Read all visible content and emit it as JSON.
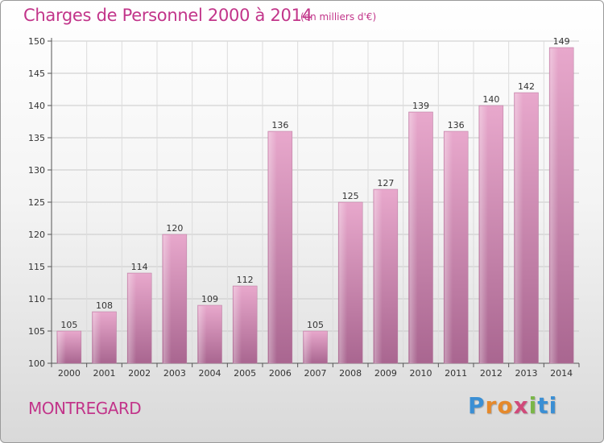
{
  "chart_data": {
    "type": "bar",
    "title": "Charges de Personnel 2000 à 2014",
    "subtitle": "(en milliers d'€)",
    "categories": [
      "2000",
      "2001",
      "2002",
      "2003",
      "2004",
      "2005",
      "2006",
      "2007",
      "2008",
      "2009",
      "2010",
      "2011",
      "2012",
      "2013",
      "2014"
    ],
    "values": [
      105,
      108,
      114,
      120,
      109,
      112,
      136,
      105,
      125,
      127,
      139,
      136,
      140,
      142,
      149
    ],
    "ylim": [
      100,
      150
    ],
    "yticks": [
      100,
      105,
      110,
      115,
      120,
      125,
      130,
      135,
      140,
      145,
      150
    ],
    "grid": true,
    "bar_color": "#d98fb8",
    "xlabel": "",
    "ylabel": ""
  },
  "footer": {
    "commune": "MONTREGARD",
    "logo_letters": [
      "P",
      "r",
      "o",
      "x",
      "i",
      "ti"
    ]
  },
  "colors": {
    "accent": "#c2358a"
  }
}
